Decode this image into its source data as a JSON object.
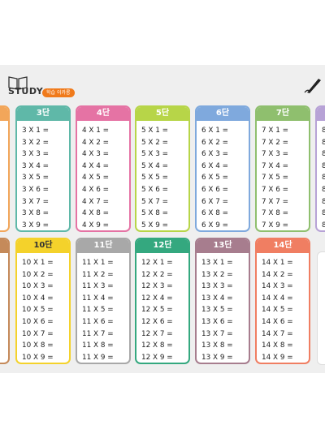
{
  "header": {
    "title": "STUDY",
    "badge": "학습 이카롱"
  },
  "colors": {
    "orange_partial": "#f2a65a",
    "teal": "#5fb8a8",
    "pink": "#e573a4",
    "green": "#b7d548",
    "blue": "#7fa9dd",
    "sage": "#8fbf6e",
    "lilac": "#b7a2d6",
    "brown_partial": "#c58a5a",
    "yellow": "#f4d22b",
    "grey": "#a8a8a8",
    "dark_green": "#34a87f",
    "mauve": "#a77d8e",
    "coral": "#f07e62"
  },
  "tables": [
    {
      "label": "3단",
      "rows": [
        "3 X 1 =",
        "3 X 2 =",
        "3 X 3 =",
        "3 X 4 =",
        "3 X 5 =",
        "3 X 6 =",
        "3 X 7 =",
        "3 X 8 =",
        "3 X 9 ="
      ]
    },
    {
      "label": "4단",
      "rows": [
        "4 X 1 =",
        "4 X 2 =",
        "4 X 3 =",
        "4 X 4 =",
        "4 X 5 =",
        "4 X 6 =",
        "4 X 7 =",
        "4 X 8 =",
        "4 X 9 ="
      ]
    },
    {
      "label": "5단",
      "rows": [
        "5 X 1 =",
        "5 X 2 =",
        "5 X 3 =",
        "5 X 4 =",
        "5 X 5 =",
        "5 X 6 =",
        "5 X 7 =",
        "5 X 8 =",
        "5 X 9 ="
      ]
    },
    {
      "label": "6단",
      "rows": [
        "6 X 1 =",
        "6 X 2 =",
        "6 X 3 =",
        "6 X 4 =",
        "6 X 5 =",
        "6 X 6 =",
        "6 X 7 =",
        "6 X 8 =",
        "6 X 9 ="
      ]
    },
    {
      "label": "7단",
      "rows": [
        "7 X 1 =",
        "7 X 2 =",
        "7 X 3 =",
        "7 X 4 =",
        "7 X 5 =",
        "7 X 6 =",
        "7 X 7 =",
        "7 X 8 =",
        "7 X 9 ="
      ]
    },
    {
      "label": "",
      "rows": [
        "8",
        "8",
        "8",
        "8",
        "8",
        "8",
        "8",
        "8",
        "8"
      ]
    },
    {
      "label": "10단",
      "rows": [
        "10 X 1 =",
        "10 X 2 =",
        "10 X 3 =",
        "10 X 4 =",
        "10 X 5 =",
        "10 X 6 =",
        "10 X 7 =",
        "10 X 8 =",
        "10 X 9 ="
      ]
    },
    {
      "label": "11단",
      "rows": [
        "11 X 1 =",
        "11 X 2 =",
        "11 X 3 =",
        "11 X 4 =",
        "11 X 5 =",
        "11 X 6 =",
        "11 X 7 =",
        "11 X 8 =",
        "11 X 9 ="
      ]
    },
    {
      "label": "12단",
      "rows": [
        "12 X 1 =",
        "12 X 2 =",
        "12 X 3 =",
        "12 X 4 =",
        "12 X 5 =",
        "12 X 6 =",
        "12 X 7 =",
        "12 X 8 =",
        "12 X 9 ="
      ]
    },
    {
      "label": "13단",
      "rows": [
        "13 X 1 =",
        "13 X 2 =",
        "13 X 3 =",
        "13 X 4 =",
        "13 X 5 =",
        "13 X 6 =",
        "13 X 7 =",
        "13 X 8 =",
        "13 X 9 ="
      ]
    },
    {
      "label": "14단",
      "rows": [
        "14 X 1 =",
        "14 X 2 =",
        "14 X 3 =",
        "14 X 4 =",
        "14 X 5 =",
        "14 X 6 =",
        "14 X 7 =",
        "14 X 8 =",
        "14 X 9 ="
      ]
    }
  ]
}
